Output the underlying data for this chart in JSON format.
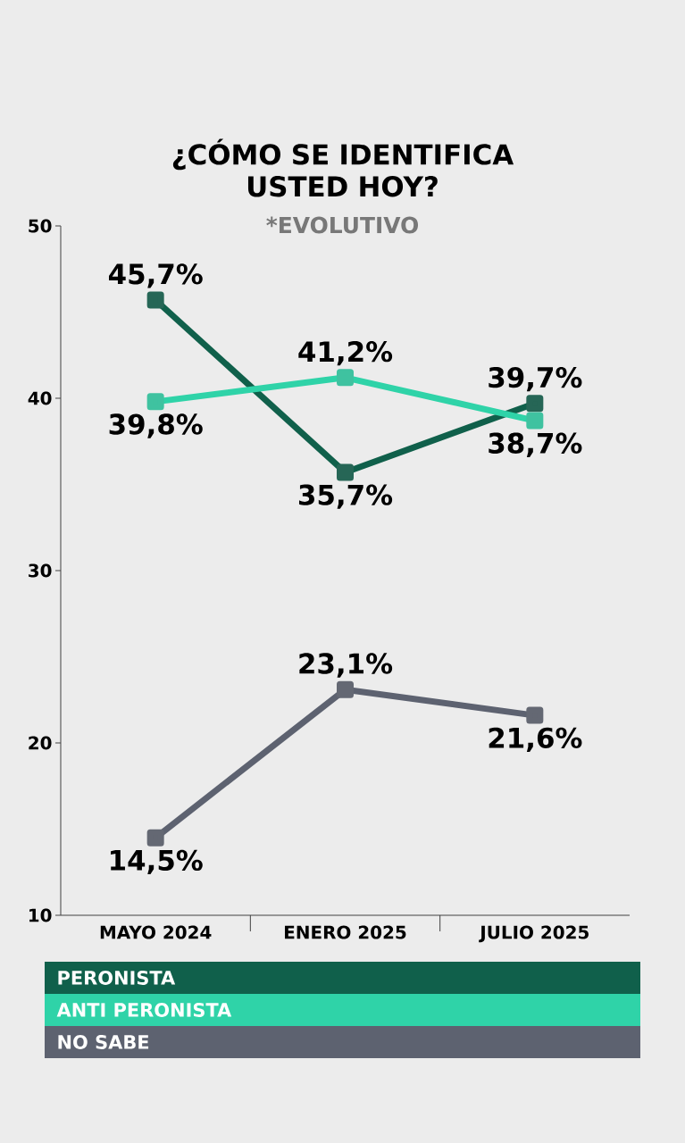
{
  "chart_data": {
    "type": "line",
    "title": "¿CÓMO SE IDENTIFICA USTED HOY?",
    "subtitle": "*EVOLUTIVO",
    "categories": [
      "MAYO 2024",
      "ENERO 2025",
      "JULIO 2025"
    ],
    "series": [
      {
        "name": "PERONISTA",
        "color": "#10604b",
        "values": [
          45.7,
          35.7,
          39.7
        ],
        "value_labels": [
          "45,7%",
          "35,7%",
          "39,7%"
        ]
      },
      {
        "name": "ANTI PERONISTA",
        "color": "#2fd3a8",
        "values": [
          39.8,
          41.2,
          38.7
        ],
        "value_labels": [
          "39,8%",
          "41,2%",
          "38,7%"
        ]
      },
      {
        "name": "NO SABE",
        "color": "#5d6270",
        "values": [
          14.5,
          23.1,
          21.6
        ],
        "value_labels": [
          "14,5%",
          "23,1%",
          "21,6%"
        ]
      }
    ],
    "ylim": [
      10,
      50
    ],
    "yticks": [
      10,
      20,
      30,
      40,
      50
    ],
    "legend": "bottom",
    "marker": "square",
    "line_style": "solid"
  }
}
